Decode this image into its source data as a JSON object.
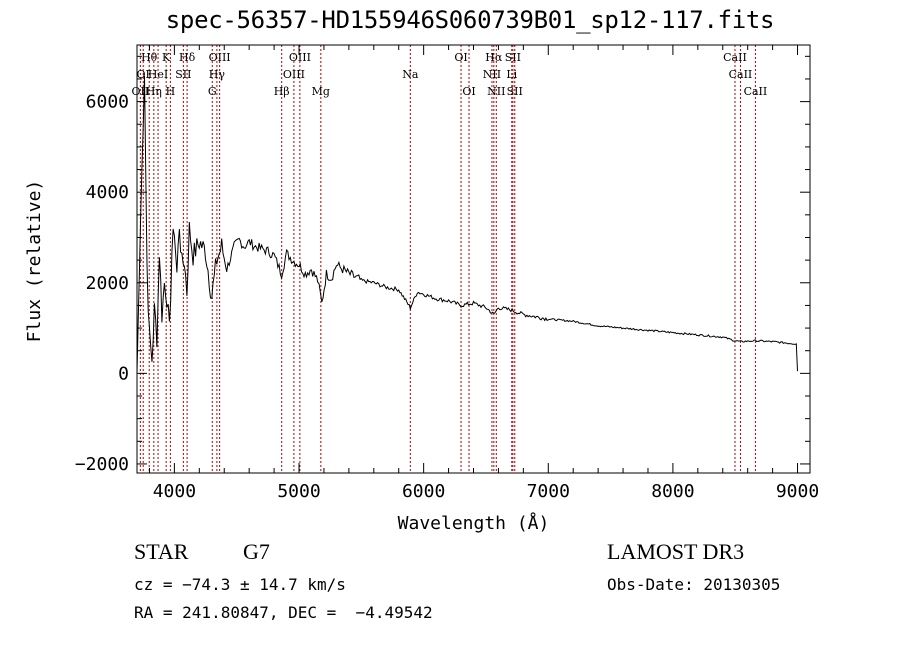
{
  "chart_data": {
    "type": "line",
    "title": "spec-56357-HD155946S060739B01_sp12-117.fits",
    "xlabel": "Wavelength (Å)",
    "ylabel": "Flux (relative)",
    "xlim": [
      3700,
      9100
    ],
    "ylim": [
      -2200,
      7250
    ],
    "xticks": [
      4000,
      5000,
      6000,
      7000,
      8000,
      9000
    ],
    "xtick_labels": [
      "4000",
      "5000",
      "6000",
      "7000",
      "8000",
      "9000"
    ],
    "yticks": [
      -2000,
      0,
      2000,
      4000,
      6000
    ],
    "ytick_labels": [
      "−2000",
      "0",
      "2000",
      "4000",
      "6000"
    ],
    "series": [
      {
        "name": "spectrum",
        "x": [
          3700,
          3730,
          3760,
          3780,
          3800,
          3820,
          3840,
          3860,
          3880,
          3900,
          3920,
          3940,
          3960,
          3980,
          4000,
          4020,
          4040,
          4060,
          4080,
          4100,
          4120,
          4150,
          4200,
          4250,
          4300,
          4340,
          4380,
          4420,
          4480,
          4520,
          4560,
          4600,
          4650,
          4700,
          4750,
          4800,
          4860,
          4900,
          4950,
          5000,
          5050,
          5100,
          5150,
          5183,
          5220,
          5260,
          5300,
          5350,
          5400,
          5500,
          5600,
          5700,
          5800,
          5893,
          5950,
          6000,
          6100,
          6200,
          6300,
          6400,
          6500,
          6563,
          6600,
          6700,
          6800,
          7000,
          7200,
          7400,
          7600,
          7800,
          8000,
          8200,
          8400,
          8498,
          8542,
          8662,
          8800,
          8990,
          9000
        ],
        "y": [
          0,
          3500,
          6700,
          2400,
          800,
          300,
          1400,
          800,
          2700,
          1300,
          2000,
          1700,
          900,
          2700,
          3200,
          2200,
          3300,
          2400,
          2500,
          1800,
          3200,
          2600,
          2900,
          2700,
          1700,
          2500,
          2800,
          2300,
          2800,
          2950,
          2800,
          2900,
          2800,
          2750,
          2700,
          2600,
          2200,
          2650,
          2500,
          2400,
          2200,
          2300,
          2050,
          1550,
          2200,
          2100,
          2400,
          2300,
          2200,
          2050,
          2000,
          1900,
          1850,
          1450,
          1800,
          1750,
          1650,
          1600,
          1500,
          1550,
          1450,
          1300,
          1450,
          1400,
          1300,
          1200,
          1150,
          1050,
          1000,
          950,
          900,
          850,
          800,
          720,
          700,
          720,
          700,
          650,
          50
        ]
      }
    ],
    "lines": [
      {
        "x": 3727,
        "label": "OII",
        "row": 3
      },
      {
        "x": 3750,
        "label": "OI",
        "row": 2
      },
      {
        "x": 3798,
        "label": "Hθ",
        "row": 1
      },
      {
        "x": 3835,
        "label": "Hη",
        "row": 3
      },
      {
        "x": 3869,
        "label": "HeI",
        "row": 2
      },
      {
        "x": 3934,
        "label": "K",
        "row": 1
      },
      {
        "x": 3968,
        "label": "H",
        "row": 3
      },
      {
        "x": 4072,
        "label": "SII",
        "row": 2
      },
      {
        "x": 4102,
        "label": "Hδ",
        "row": 1
      },
      {
        "x": 4304,
        "label": "G",
        "row": 3
      },
      {
        "x": 4341,
        "label": "Hγ",
        "row": 2
      },
      {
        "x": 4363,
        "label": "OIII",
        "row": 1
      },
      {
        "x": 4861,
        "label": "Hβ",
        "row": 3
      },
      {
        "x": 4959,
        "label": "OIII",
        "row": 2
      },
      {
        "x": 5007,
        "label": "OIII",
        "row": 1
      },
      {
        "x": 5175,
        "label": "Mg",
        "row": 3
      },
      {
        "x": 5893,
        "label": "Na",
        "row": 2
      },
      {
        "x": 6300,
        "label": "OI",
        "row": 1
      },
      {
        "x": 6364,
        "label": "OI",
        "row": 3
      },
      {
        "x": 6548,
        "label": "NII",
        "row": 2
      },
      {
        "x": 6563,
        "label": "Hα",
        "row": 1
      },
      {
        "x": 6583,
        "label": "NII",
        "row": 3
      },
      {
        "x": 6707,
        "label": "Li",
        "row": 2
      },
      {
        "x": 6716,
        "label": "SII",
        "row": 1
      },
      {
        "x": 6731,
        "label": "SII",
        "row": 3
      },
      {
        "x": 8498,
        "label": "CaII",
        "row": 1
      },
      {
        "x": 8542,
        "label": "CaII",
        "row": 2
      },
      {
        "x": 8662,
        "label": "CaII",
        "row": 3
      }
    ]
  },
  "info": {
    "class": "STAR",
    "subclass": "G7",
    "survey": "LAMOST DR3",
    "redshift": "cz = −74.3 ± 14.7 km/s",
    "obs_date": "Obs-Date: 20130305",
    "coords": "RA = 241.80847, DEC =  −4.49542"
  },
  "colors": {
    "line_marker": "#b00000",
    "spectrum": "#000000"
  }
}
